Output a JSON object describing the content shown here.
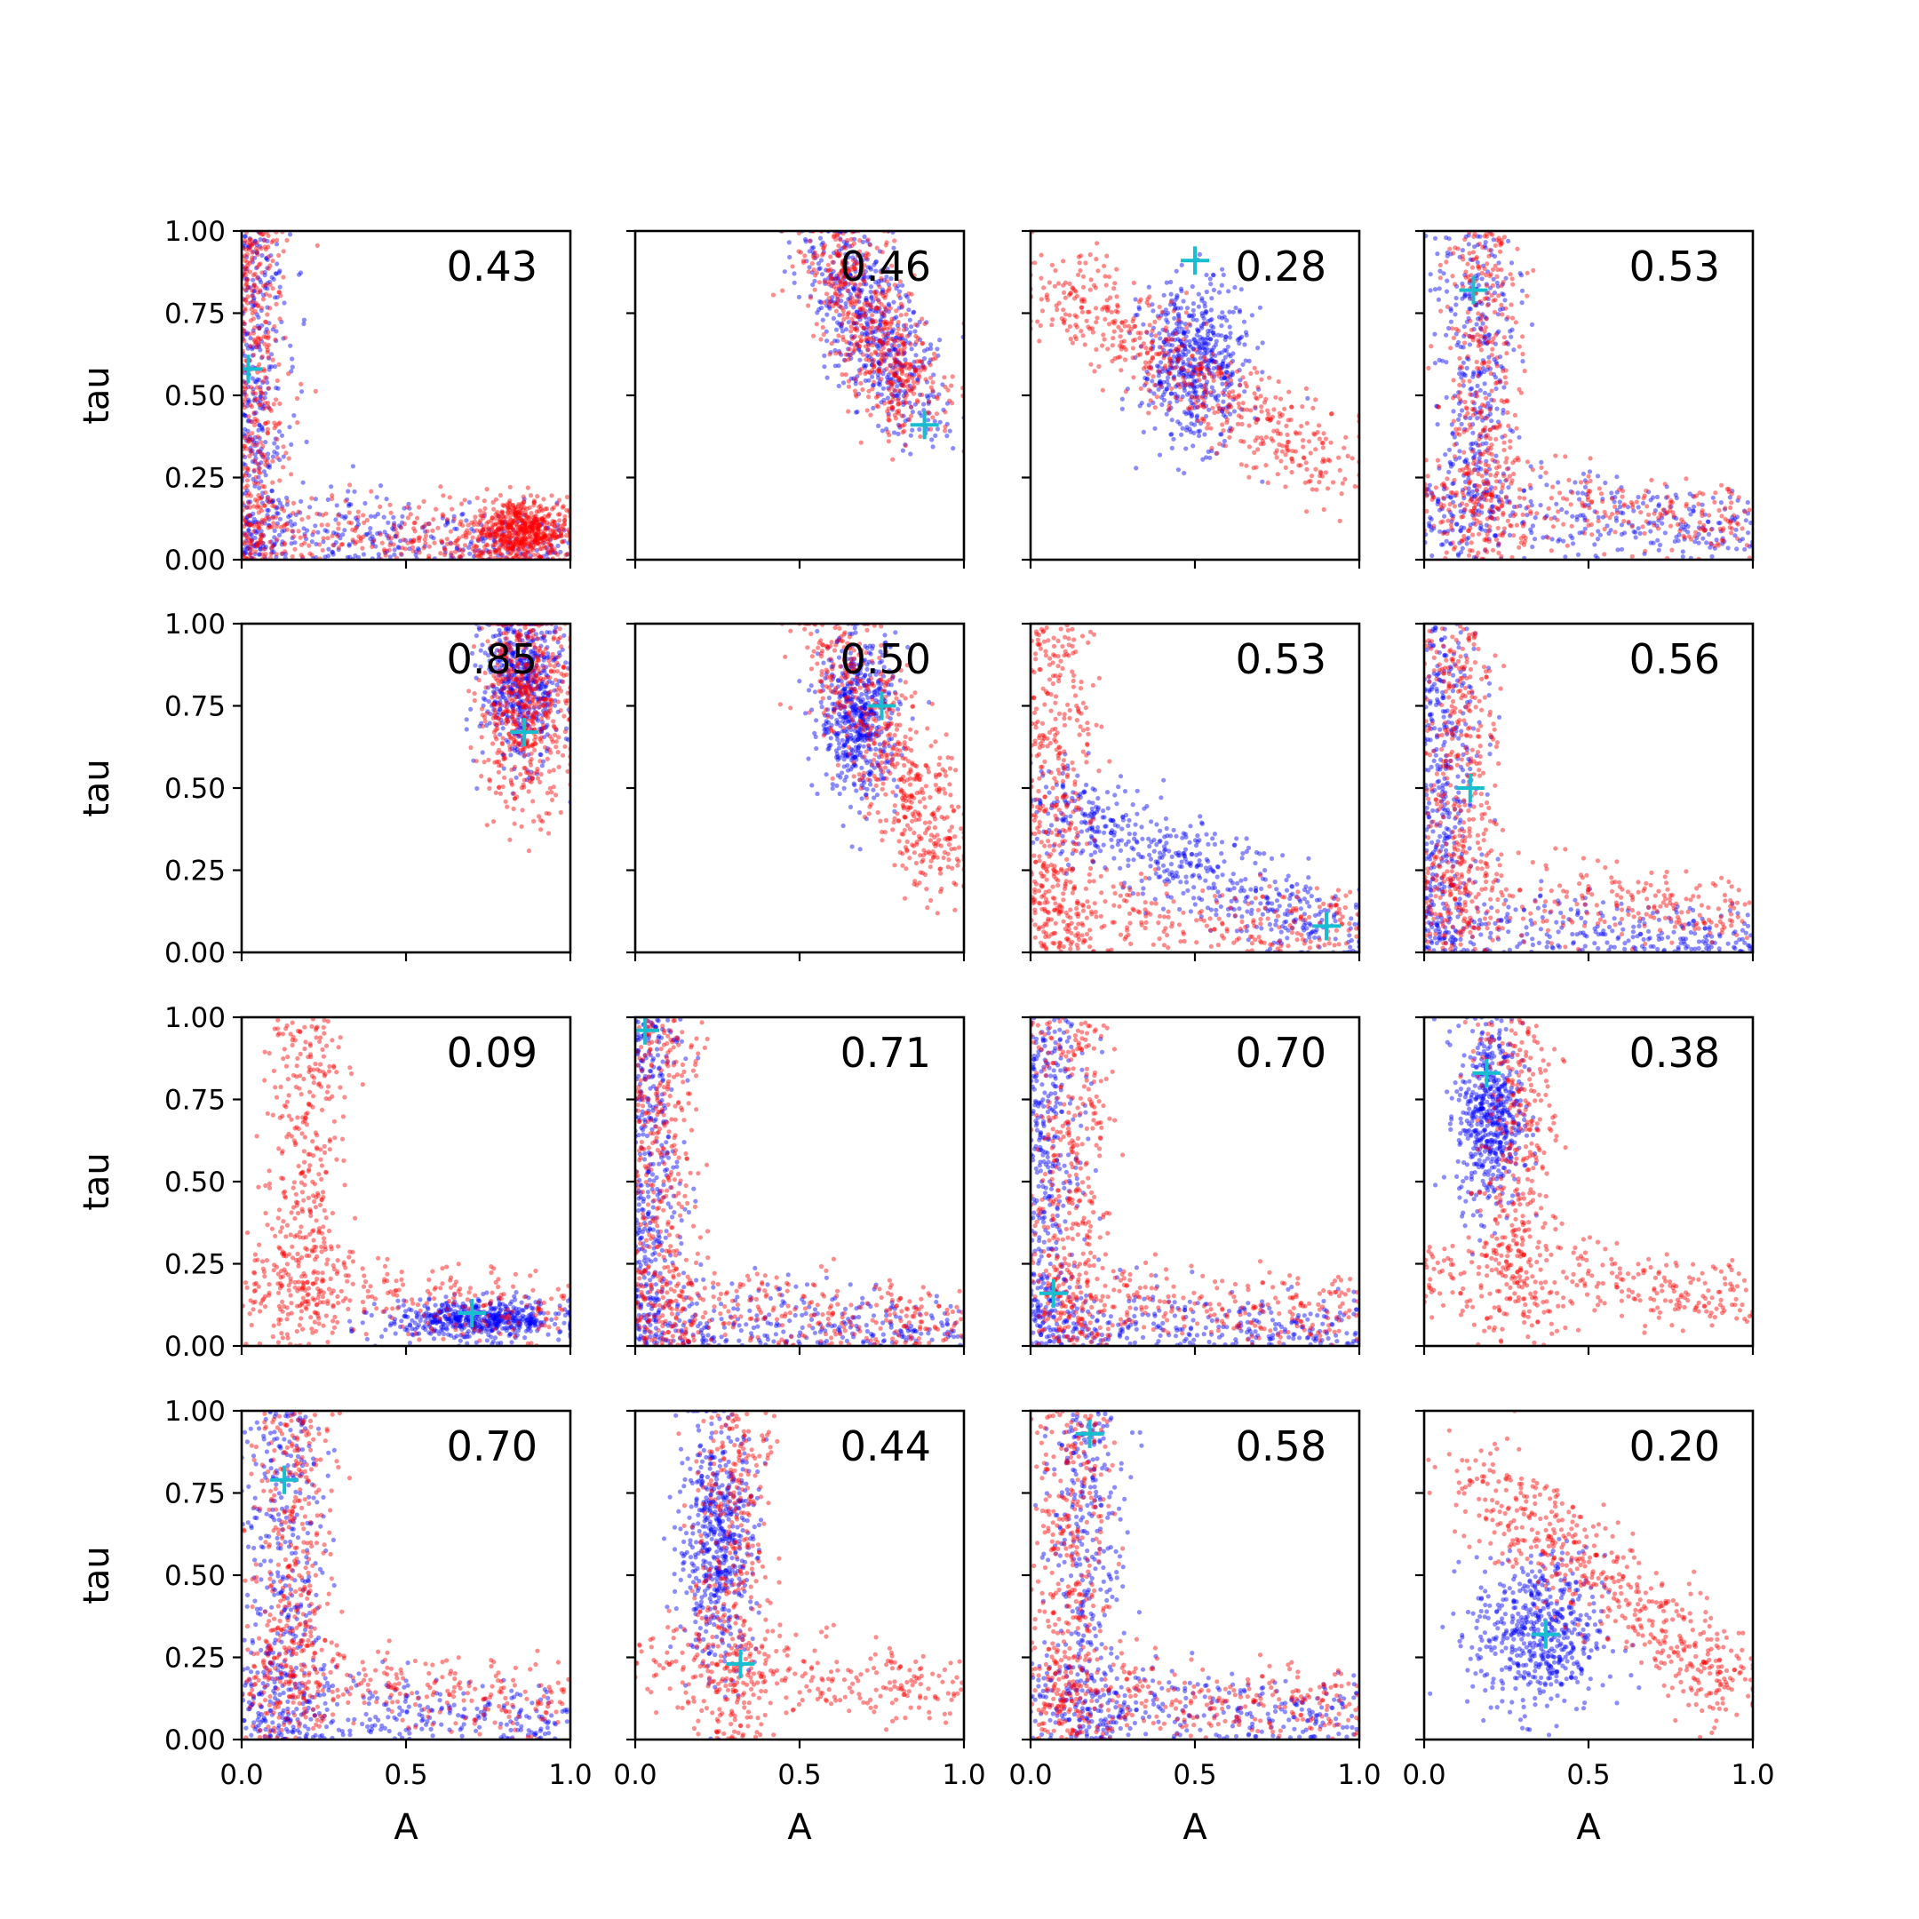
{
  "figure": {
    "xlabel": "A",
    "ylabel": "tau",
    "x_ticks": [
      "0.0",
      "0.5",
      "1.0"
    ],
    "y_ticks": [
      "0.00",
      "0.25",
      "0.50",
      "0.75",
      "1.00"
    ],
    "colors": {
      "series_a": "#ff0000",
      "series_b": "#0000ff",
      "marker": "#17becf"
    }
  },
  "chart_data": {
    "type": "scatter",
    "layout": "4x4 grid of scatter panels with shared axes",
    "xlabel": "A",
    "ylabel": "tau",
    "xlim": [
      0,
      1
    ],
    "ylim": [
      0,
      1
    ],
    "grid": false,
    "series_colors": [
      "red",
      "blue"
    ],
    "marker_symbol": "+",
    "panels": [
      {
        "value": "0.43",
        "marker": [
          0.02,
          0.58
        ],
        "clusters": [
          {
            "color": "blue",
            "shape": "L",
            "cx": 0.03,
            "cy": 0.05,
            "ys": 0.4
          },
          {
            "color": "red",
            "shape": "L",
            "cx": 0.03,
            "cy": 0.05,
            "ys": 0.4
          },
          {
            "color": "red",
            "shape": "blob",
            "cx": 0.85,
            "cy": 0.09,
            "sx": 0.07,
            "sy": 0.05
          }
        ]
      },
      {
        "value": "0.46",
        "marker": [
          0.88,
          0.41
        ],
        "clusters": [
          {
            "color": "blue",
            "shape": "curve",
            "x0": 0.6,
            "y0": 0.95,
            "x1": 0.85,
            "y1": 0.45
          },
          {
            "color": "red",
            "shape": "curve",
            "x0": 0.6,
            "y0": 0.95,
            "x1": 0.85,
            "y1": 0.45
          }
        ]
      },
      {
        "value": "0.28",
        "marker": [
          0.5,
          0.91
        ],
        "clusters": [
          {
            "color": "blue",
            "shape": "blob",
            "cx": 0.5,
            "cy": 0.6,
            "sx": 0.08,
            "sy": 0.12
          },
          {
            "color": "red",
            "shape": "curve",
            "x0": 0.05,
            "y0": 0.85,
            "x1": 0.95,
            "y1": 0.25
          }
        ]
      },
      {
        "value": "0.53",
        "marker": [
          0.15,
          0.82
        ],
        "clusters": [
          {
            "color": "blue",
            "shape": "L",
            "cx": 0.15,
            "cy": 0.1,
            "ys": 0.35
          },
          {
            "color": "red",
            "shape": "L",
            "cx": 0.18,
            "cy": 0.12,
            "ys": 0.3
          }
        ]
      },
      {
        "value": "0.85",
        "marker": [
          0.86,
          0.67
        ],
        "clusters": [
          {
            "color": "blue",
            "shape": "blob",
            "cx": 0.85,
            "cy": 0.82,
            "sx": 0.06,
            "sy": 0.12
          },
          {
            "color": "red",
            "shape": "blob",
            "cx": 0.86,
            "cy": 0.75,
            "sx": 0.07,
            "sy": 0.15
          }
        ]
      },
      {
        "value": "0.50",
        "marker": [
          0.75,
          0.75
        ],
        "clusters": [
          {
            "color": "blue",
            "shape": "blob",
            "cx": 0.68,
            "cy": 0.72,
            "sx": 0.06,
            "sy": 0.12
          },
          {
            "color": "red",
            "shape": "curve",
            "x0": 0.6,
            "y0": 0.95,
            "x1": 0.95,
            "y1": 0.25
          }
        ]
      },
      {
        "value": "0.53",
        "marker": [
          0.9,
          0.08
        ],
        "clusters": [
          {
            "color": "blue",
            "shape": "curve",
            "x0": 0.05,
            "y0": 0.45,
            "x1": 0.95,
            "y1": 0.05
          },
          {
            "color": "red",
            "shape": "L",
            "cx": 0.08,
            "cy": 0.08,
            "ys": 0.4
          }
        ]
      },
      {
        "value": "0.56",
        "marker": [
          0.14,
          0.5
        ],
        "clusters": [
          {
            "color": "blue",
            "shape": "L",
            "cx": 0.05,
            "cy": 0.04,
            "ys": 0.4
          },
          {
            "color": "red",
            "shape": "L",
            "cx": 0.1,
            "cy": 0.12,
            "ys": 0.3
          }
        ]
      },
      {
        "value": "0.09",
        "marker": [
          0.7,
          0.1
        ],
        "clusters": [
          {
            "color": "blue",
            "shape": "blob",
            "cx": 0.72,
            "cy": 0.08,
            "sx": 0.14,
            "sy": 0.03
          },
          {
            "color": "red",
            "shape": "L",
            "cx": 0.2,
            "cy": 0.12,
            "ys": 0.3
          }
        ]
      },
      {
        "value": "0.71",
        "marker": [
          0.03,
          0.96
        ],
        "clusters": [
          {
            "color": "blue",
            "shape": "L",
            "cx": 0.04,
            "cy": 0.04,
            "ys": 0.4
          },
          {
            "color": "red",
            "shape": "L",
            "cx": 0.08,
            "cy": 0.08,
            "ys": 0.35
          }
        ]
      },
      {
        "value": "0.70",
        "marker": [
          0.07,
          0.16
        ],
        "clusters": [
          {
            "color": "blue",
            "shape": "L",
            "cx": 0.05,
            "cy": 0.05,
            "ys": 0.4
          },
          {
            "color": "red",
            "shape": "L",
            "cx": 0.12,
            "cy": 0.1,
            "ys": 0.3
          }
        ]
      },
      {
        "value": "0.38",
        "marker": [
          0.19,
          0.83
        ],
        "clusters": [
          {
            "color": "blue",
            "shape": "blob",
            "cx": 0.2,
            "cy": 0.7,
            "sx": 0.05,
            "sy": 0.14
          },
          {
            "color": "red",
            "shape": "L",
            "cx": 0.28,
            "cy": 0.15,
            "ys": 0.3
          }
        ]
      },
      {
        "value": "0.70",
        "marker": [
          0.13,
          0.79
        ],
        "clusters": [
          {
            "color": "blue",
            "shape": "L",
            "cx": 0.13,
            "cy": 0.06,
            "ys": 0.35
          },
          {
            "color": "red",
            "shape": "L",
            "cx": 0.16,
            "cy": 0.12,
            "ys": 0.3
          }
        ]
      },
      {
        "value": "0.44",
        "marker": [
          0.32,
          0.23
        ],
        "clusters": [
          {
            "color": "blue",
            "shape": "blob",
            "cx": 0.25,
            "cy": 0.6,
            "sx": 0.06,
            "sy": 0.18
          },
          {
            "color": "red",
            "shape": "L",
            "cx": 0.3,
            "cy": 0.15,
            "ys": 0.3
          }
        ]
      },
      {
        "value": "0.58",
        "marker": [
          0.18,
          0.93
        ],
        "clusters": [
          {
            "color": "blue",
            "shape": "L",
            "cx": 0.17,
            "cy": 0.08,
            "ys": 0.4
          },
          {
            "color": "red",
            "shape": "L",
            "cx": 0.12,
            "cy": 0.1,
            "ys": 0.3
          }
        ]
      },
      {
        "value": "0.20",
        "marker": [
          0.37,
          0.32
        ],
        "clusters": [
          {
            "color": "blue",
            "shape": "blob",
            "cx": 0.35,
            "cy": 0.32,
            "sx": 0.1,
            "sy": 0.12
          },
          {
            "color": "red",
            "shape": "curve",
            "x0": 0.15,
            "y0": 0.8,
            "x1": 0.95,
            "y1": 0.15
          }
        ]
      }
    ]
  }
}
